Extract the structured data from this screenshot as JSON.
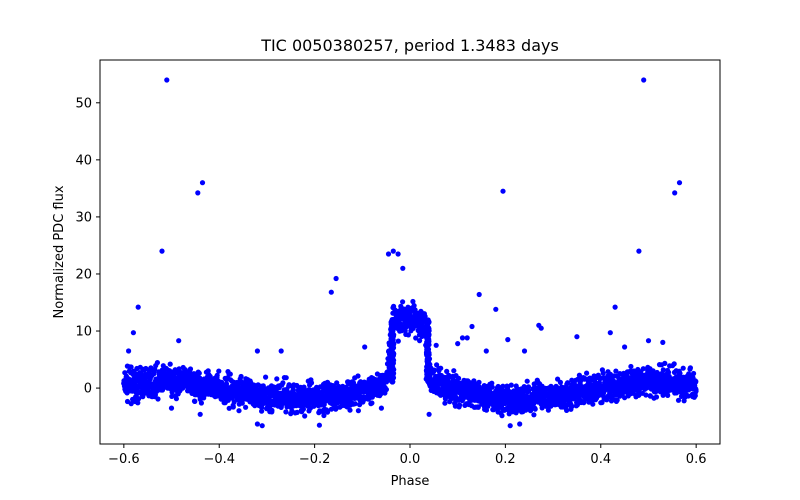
{
  "chart_data": {
    "type": "scatter",
    "title": "TIC 0050380257, period 1.3483 days",
    "xlabel": "Phase",
    "ylabel": "Normalized PDC flux",
    "xlim": [
      -0.65,
      0.65
    ],
    "ylim": [
      -9.8,
      57.5
    ],
    "xticks": [
      -0.6,
      -0.4,
      -0.2,
      0.0,
      0.2,
      0.4,
      0.6
    ],
    "xtick_labels": [
      "−0.6",
      "−0.4",
      "−0.2",
      "0.0",
      "0.2",
      "0.4",
      "0.6"
    ],
    "yticks": [
      0,
      10,
      20,
      30,
      40,
      50
    ],
    "ytick_labels": [
      "0",
      "10",
      "20",
      "30",
      "40",
      "50"
    ],
    "grid": false,
    "legend": "none",
    "marker_color": "#0000ff",
    "series": [
      {
        "baseline_model": [
          {
            "x": -0.6,
            "y": 0.5
          },
          {
            "x": -0.5,
            "y": 1.3
          },
          {
            "x": -0.4,
            "y": 0.0
          },
          {
            "x": -0.3,
            "y": -1.5
          },
          {
            "x": -0.2,
            "y": -2.0
          },
          {
            "x": -0.1,
            "y": -0.5
          },
          {
            "x": -0.05,
            "y": 1.0
          },
          {
            "x": -0.035,
            "y": 11.5
          },
          {
            "x": 0.0,
            "y": 12.5
          },
          {
            "x": 0.03,
            "y": 11.5
          },
          {
            "x": 0.045,
            "y": 1.0
          },
          {
            "x": 0.1,
            "y": -0.5
          },
          {
            "x": 0.2,
            "y": -2.0
          },
          {
            "x": 0.3,
            "y": -1.5
          },
          {
            "x": 0.4,
            "y": 0.0
          },
          {
            "x": 0.5,
            "y": 1.3
          },
          {
            "x": 0.6,
            "y": 0.5
          }
        ],
        "scatter_width": 2.2,
        "outliers": [
          {
            "x": -0.51,
            "y": 54.0
          },
          {
            "x": 0.49,
            "y": 54.0
          },
          {
            "x": -0.435,
            "y": 36.0
          },
          {
            "x": -0.445,
            "y": 34.2
          },
          {
            "x": 0.565,
            "y": 36.0
          },
          {
            "x": 0.555,
            "y": 34.2
          },
          {
            "x": 0.195,
            "y": 34.5
          },
          {
            "x": -0.52,
            "y": 24.0
          },
          {
            "x": 0.48,
            "y": 24.0
          },
          {
            "x": -0.035,
            "y": 24.0
          },
          {
            "x": -0.025,
            "y": 23.5
          },
          {
            "x": -0.045,
            "y": 23.5
          },
          {
            "x": -0.015,
            "y": 21.0
          },
          {
            "x": -0.155,
            "y": 19.2
          },
          {
            "x": -0.165,
            "y": 16.8
          },
          {
            "x": 0.145,
            "y": 16.4
          },
          {
            "x": 0.18,
            "y": 13.8
          },
          {
            "x": -0.57,
            "y": 14.2
          },
          {
            "x": 0.43,
            "y": 14.2
          },
          {
            "x": -0.58,
            "y": 9.7
          },
          {
            "x": 0.42,
            "y": 9.7
          },
          {
            "x": 0.27,
            "y": 11.0
          },
          {
            "x": 0.275,
            "y": 10.5
          },
          {
            "x": -0.095,
            "y": 7.2
          },
          {
            "x": -0.485,
            "y": 8.3
          },
          {
            "x": 0.5,
            "y": 8.3
          },
          {
            "x": 0.53,
            "y": 8.0
          },
          {
            "x": 0.11,
            "y": 8.8
          },
          {
            "x": 0.12,
            "y": 8.8
          },
          {
            "x": 0.13,
            "y": 10.8
          },
          {
            "x": 0.055,
            "y": 7.5
          },
          {
            "x": 0.35,
            "y": 9.0
          },
          {
            "x": 0.1,
            "y": 7.8
          },
          {
            "x": 0.205,
            "y": 8.5
          },
          {
            "x": -0.59,
            "y": 6.5
          },
          {
            "x": -0.32,
            "y": 6.5
          },
          {
            "x": -0.27,
            "y": 6.5
          },
          {
            "x": 0.16,
            "y": 6.5
          },
          {
            "x": 0.24,
            "y": 6.5
          },
          {
            "x": 0.45,
            "y": 7.2
          },
          {
            "x": -0.31,
            "y": -6.6
          },
          {
            "x": -0.32,
            "y": -6.3
          },
          {
            "x": 0.21,
            "y": -6.6
          },
          {
            "x": 0.23,
            "y": -6.3
          },
          {
            "x": -0.19,
            "y": -6.5
          },
          {
            "x": -0.44,
            "y": -4.6
          },
          {
            "x": 0.04,
            "y": -4.6
          },
          {
            "x": -0.5,
            "y": -3.5
          },
          {
            "x": -0.06,
            "y": -3.5
          }
        ]
      }
    ]
  }
}
